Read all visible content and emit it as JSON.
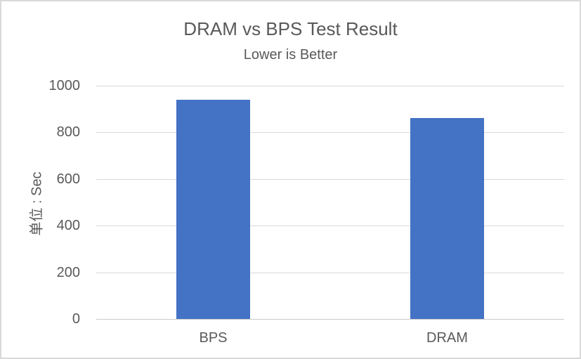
{
  "chart_data": {
    "type": "bar",
    "title": "DRAM vs BPS Test Result",
    "subtitle": "Lower is Better",
    "ylabel": "单位 : Sec",
    "xlabel": "",
    "categories": [
      "BPS",
      "DRAM"
    ],
    "values": [
      940,
      860
    ],
    "yticks": [
      0,
      200,
      400,
      600,
      800,
      1000
    ],
    "ylim": [
      0,
      1000
    ],
    "grid": true,
    "legend": false,
    "colors": {
      "bar": "#4472C4",
      "gridline": "#d9d9d9",
      "axis_line": "#cbcbcb",
      "text": "#595959",
      "border": "#d9d9d9",
      "background": "#ffffff"
    }
  }
}
